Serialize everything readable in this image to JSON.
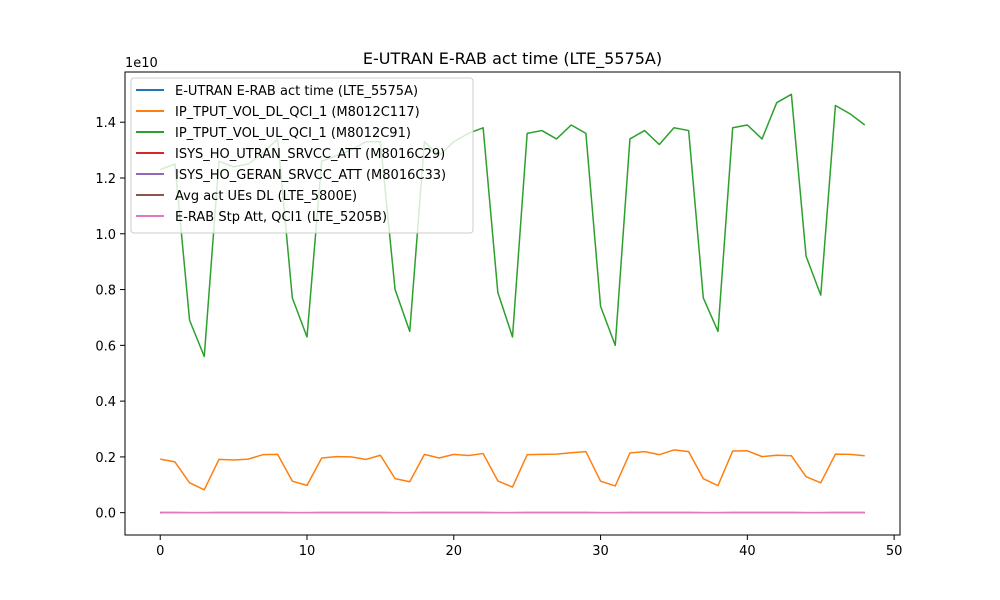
{
  "chart_data": {
    "type": "line",
    "title": "E-UTRAN E-RAB act time (LTE_5575A)",
    "xlabel": "",
    "ylabel": "",
    "y_scale_label": "1e10",
    "xlim": [
      -2.4,
      50.4
    ],
    "ylim": [
      -0.08,
      1.58
    ],
    "x_ticks": [
      0,
      10,
      20,
      30,
      40,
      50
    ],
    "y_ticks": [
      0.0,
      0.2,
      0.4,
      0.6,
      0.8,
      1.0,
      1.2,
      1.4
    ],
    "y_tick_labels": [
      "0.0",
      "0.2",
      "0.4",
      "0.6",
      "0.8",
      "1.0",
      "1.2",
      "1.4"
    ],
    "grid": false,
    "legend_position": "top-left",
    "x": [
      0,
      1,
      2,
      3,
      4,
      5,
      6,
      7,
      8,
      9,
      10,
      11,
      12,
      13,
      14,
      15,
      16,
      17,
      18,
      19,
      20,
      21,
      22,
      23,
      24,
      25,
      26,
      27,
      28,
      29,
      30,
      31,
      32,
      33,
      34,
      35,
      36,
      37,
      38,
      39,
      40,
      41,
      42,
      43,
      44,
      45,
      46,
      47,
      48
    ],
    "series": [
      {
        "name": "E-UTRAN E-RAB act time (LTE_5575A)",
        "color": "#1f77b4",
        "values": [
          0.0005,
          0.0005,
          0.0004,
          0.0003,
          0.0005,
          0.0005,
          0.0005,
          0.0005,
          0.0005,
          0.0004,
          0.0004,
          0.0005,
          0.0005,
          0.0005,
          0.0005,
          0.0005,
          0.0004,
          0.0004,
          0.0005,
          0.0005,
          0.0005,
          0.0005,
          0.0005,
          0.0004,
          0.0004,
          0.0005,
          0.0005,
          0.0005,
          0.0005,
          0.0005,
          0.0004,
          0.0004,
          0.0005,
          0.0005,
          0.0005,
          0.0005,
          0.0005,
          0.0004,
          0.0004,
          0.0005,
          0.0005,
          0.0005,
          0.0005,
          0.0005,
          0.0004,
          0.0004,
          0.0005,
          0.0005,
          0.0005
        ]
      },
      {
        "name": "IP_TPUT_VOL_DL_QCI_1 (M8012C117)",
        "color": "#ff7f0e",
        "values": [
          0.192,
          0.182,
          0.107,
          0.082,
          0.191,
          0.189,
          0.192,
          0.208,
          0.209,
          0.113,
          0.098,
          0.196,
          0.201,
          0.2,
          0.191,
          0.206,
          0.122,
          0.111,
          0.209,
          0.196,
          0.209,
          0.205,
          0.212,
          0.114,
          0.092,
          0.208,
          0.209,
          0.21,
          0.215,
          0.219,
          0.113,
          0.096,
          0.214,
          0.219,
          0.208,
          0.225,
          0.219,
          0.122,
          0.097,
          0.221,
          0.222,
          0.201,
          0.206,
          0.204,
          0.129,
          0.107,
          0.21,
          0.209,
          0.204
        ]
      },
      {
        "name": "IP_TPUT_VOL_UL_QCI_1 (M8012C91)",
        "color": "#2ca02c",
        "values": [
          1.23,
          1.25,
          0.69,
          0.56,
          1.26,
          1.24,
          1.25,
          1.29,
          1.34,
          0.77,
          0.63,
          1.26,
          1.28,
          1.3,
          1.33,
          1.33,
          0.8,
          0.65,
          1.33,
          1.28,
          1.33,
          1.36,
          1.38,
          0.79,
          0.63,
          1.36,
          1.37,
          1.34,
          1.39,
          1.36,
          0.74,
          0.6,
          1.34,
          1.37,
          1.32,
          1.38,
          1.37,
          0.77,
          0.65,
          1.38,
          1.39,
          1.34,
          1.47,
          1.5,
          0.92,
          0.78,
          1.46,
          1.43,
          1.39
        ]
      },
      {
        "name": "ISYS_HO_UTRAN_SRVCC_ATT (M8016C29)",
        "color": "#d62728",
        "values": [
          0,
          0,
          0,
          0,
          0,
          0,
          0,
          0,
          0,
          0,
          0,
          0,
          0,
          0,
          0,
          0,
          0,
          0,
          0,
          0,
          0,
          0,
          0,
          0,
          0,
          0,
          0,
          0,
          0,
          0,
          0,
          0,
          0,
          0,
          0,
          0,
          0,
          0,
          0,
          0,
          0,
          0,
          0,
          0,
          0,
          0,
          0,
          0,
          0
        ]
      },
      {
        "name": "ISYS_HO_GERAN_SRVCC_ATT (M8016C33)",
        "color": "#9467bd",
        "values": [
          0,
          0,
          0,
          0,
          0,
          0,
          0,
          0,
          0,
          0,
          0,
          0,
          0,
          0,
          0,
          0,
          0,
          0,
          0,
          0,
          0,
          0,
          0,
          0,
          0,
          0,
          0,
          0,
          0,
          0,
          0,
          0,
          0,
          0,
          0,
          0,
          0,
          0,
          0,
          0,
          0,
          0,
          0,
          0,
          0,
          0,
          0,
          0,
          0
        ]
      },
      {
        "name": "Avg act UEs DL (LTE_5800E)",
        "color": "#8c564b",
        "values": [
          0,
          0,
          0,
          0,
          0,
          0,
          0,
          0,
          0,
          0,
          0,
          0,
          0,
          0,
          0,
          0,
          0,
          0,
          0,
          0,
          0,
          0,
          0,
          0,
          0,
          0,
          0,
          0,
          0,
          0,
          0,
          0,
          0,
          0,
          0,
          0,
          0,
          0,
          0,
          0,
          0,
          0,
          0,
          0,
          0,
          0,
          0,
          0,
          0
        ]
      },
      {
        "name": "E-RAB Stp Att, QCI1 (LTE_5205B)",
        "color": "#e377c2",
        "values": [
          0,
          0,
          0,
          0,
          0,
          0,
          0,
          0,
          0,
          0,
          0,
          0,
          0,
          0,
          0,
          0,
          0,
          0,
          0,
          0,
          0,
          0,
          0,
          0,
          0,
          0,
          0,
          0,
          0,
          0,
          0,
          0,
          0,
          0,
          0,
          0,
          0,
          0,
          0,
          0,
          0,
          0,
          0,
          0,
          0,
          0,
          0,
          0,
          0
        ]
      }
    ]
  }
}
